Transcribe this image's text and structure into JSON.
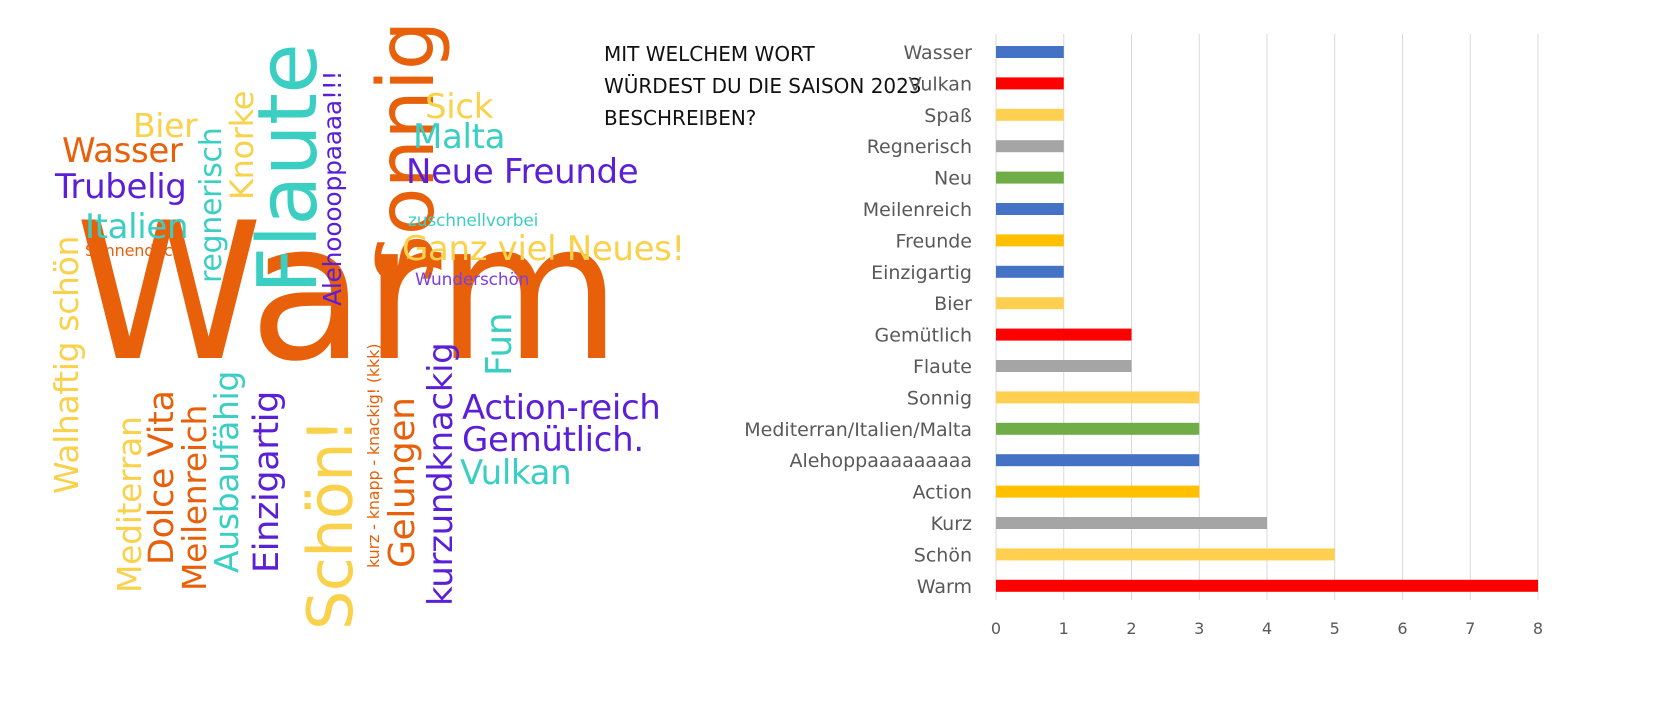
{
  "question": "MIT WELCHEM WORT\nWÜRDEST DU DIE SAISON 2023\nBESCHREIBEN?",
  "colors": {
    "red": "#FF0000",
    "yellow": "#FFC000",
    "light_yellow": "#FFD050",
    "gray": "#A5A5A5",
    "blue": "#4472C4",
    "green": "#70AD47",
    "orange": "#E8600A",
    "purple": "#5B1FD6",
    "teal": "#3BCFC4",
    "word_yellow": "#F9D14A",
    "word_purple": "#7C3FE0"
  },
  "word_cloud": [
    {
      "text": "Warm",
      "color": "#E8600A"
    },
    {
      "text": "Schön!",
      "color": "#F9D14A"
    },
    {
      "text": "Sonnig",
      "color": "#E8600A"
    },
    {
      "text": "Flaute",
      "color": "#3BCFC4"
    },
    {
      "text": "Alehooooppaaaa!!!",
      "color": "#5B1FD6"
    },
    {
      "text": "Sick",
      "color": "#F9D14A"
    },
    {
      "text": "Malta",
      "color": "#3BCFC4"
    },
    {
      "text": "Neue Freunde",
      "color": "#5B1FD6"
    },
    {
      "text": "zuschnellvorbei",
      "color": "#3BCFC4"
    },
    {
      "text": "Ganz viel Neues!",
      "color": "#F9D14A"
    },
    {
      "text": "Wunderschön",
      "color": "#7C3FE0"
    },
    {
      "text": "Bier",
      "color": "#F9D14A"
    },
    {
      "text": "Wasser",
      "color": "#E8600A"
    },
    {
      "text": "Trubelig",
      "color": "#5B1FD6"
    },
    {
      "text": "Italien",
      "color": "#3BCFC4"
    },
    {
      "text": "Sonnendeck",
      "color": "#E8600A"
    },
    {
      "text": "regnerisch",
      "color": "#3BCFC4"
    },
    {
      "text": "Knorke",
      "color": "#F9D14A"
    },
    {
      "text": "Walhaftig schön",
      "color": "#F9D14A"
    },
    {
      "text": "Mediterran",
      "color": "#F9D14A"
    },
    {
      "text": "Dolce Vita",
      "color": "#E8600A"
    },
    {
      "text": "Meilenreich",
      "color": "#E8600A"
    },
    {
      "text": "Ausbaufähig",
      "color": "#3BCFC4"
    },
    {
      "text": "Einzigartig",
      "color": "#5B1FD6"
    },
    {
      "text": "kurz - knapp - knackig! (kkk)",
      "color": "#E8600A"
    },
    {
      "text": "Gelungen",
      "color": "#E8600A"
    },
    {
      "text": "kurzundknackig",
      "color": "#5B1FD6"
    },
    {
      "text": "Fun",
      "color": "#3BCFC4"
    },
    {
      "text": "Action-reich",
      "color": "#5B1FD6"
    },
    {
      "text": "Gemütlich.",
      "color": "#5B1FD6"
    },
    {
      "text": "Vulkan",
      "color": "#3BCFC4"
    }
  ],
  "chart_data": {
    "type": "bar",
    "orientation": "horizontal",
    "categories": [
      "Wasser",
      "Vulkan",
      "Spaß",
      "Regnerisch",
      "Neu",
      "Meilenreich",
      "Freunde",
      "Einzigartig",
      "Bier",
      "Gemütlich",
      "Flaute",
      "Sonnig",
      "Mediterran/Italien/Malta",
      "Alehoppaaaaaaaaa",
      "Action",
      "Kurz",
      "Schön",
      "Warm"
    ],
    "values": [
      1,
      1,
      1,
      1,
      1,
      1,
      1,
      1,
      1,
      2,
      2,
      3,
      3,
      3,
      3,
      4,
      5,
      8
    ],
    "bar_colors": [
      "#4472C4",
      "#FF0000",
      "#FFD050",
      "#A5A5A5",
      "#70AD47",
      "#4472C4",
      "#FFC000",
      "#4472C4",
      "#FFD050",
      "#FF0000",
      "#A5A5A5",
      "#FFD050",
      "#70AD47",
      "#4472C4",
      "#FFC000",
      "#A5A5A5",
      "#FFD050",
      "#FF0000"
    ],
    "xlim": [
      0,
      8
    ],
    "xticks": [
      "0",
      "1",
      "2",
      "3",
      "4",
      "5",
      "6",
      "7",
      "8"
    ],
    "grid": true,
    "legend": "none"
  }
}
